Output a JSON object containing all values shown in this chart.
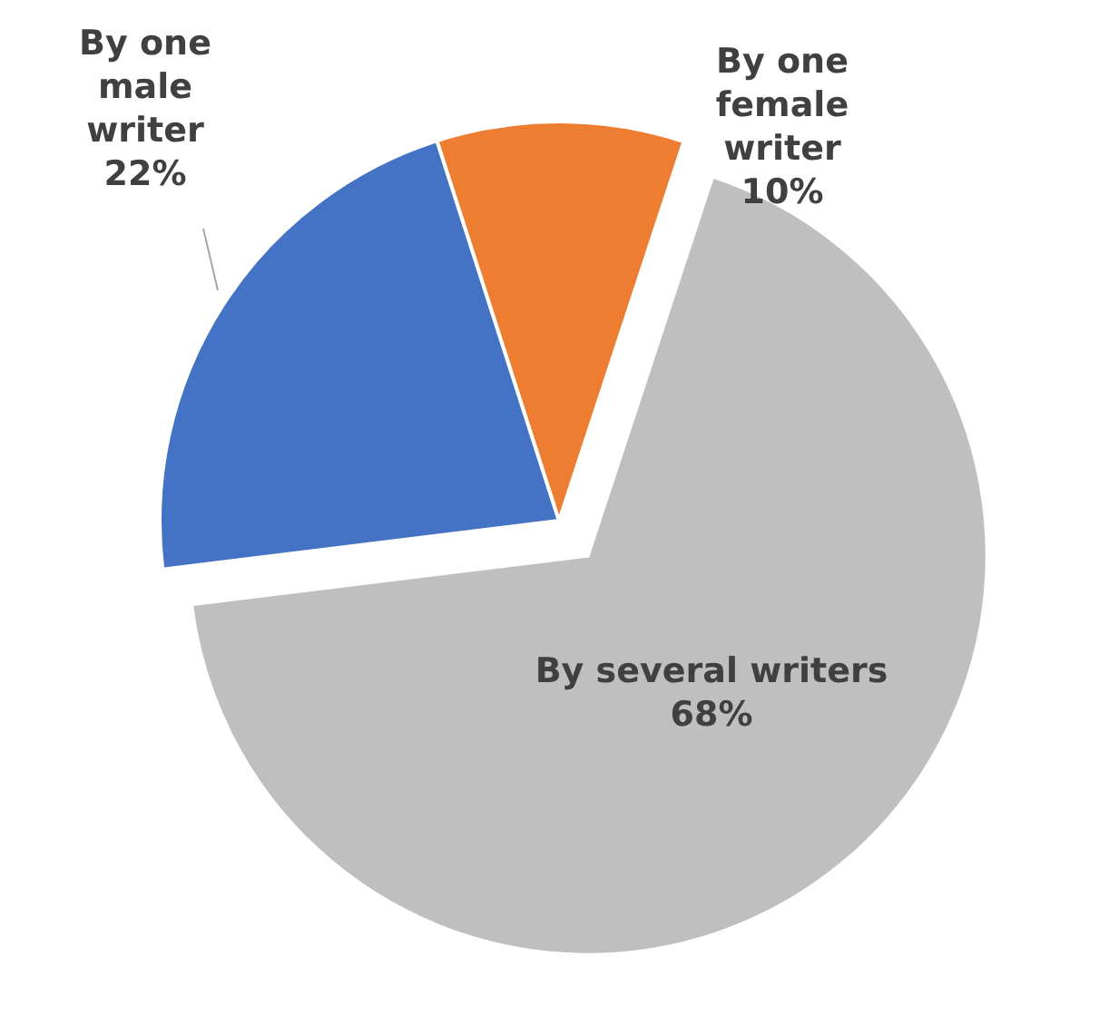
{
  "chart_data": {
    "type": "pie",
    "categories": [
      "By one male writer",
      "By one female writer",
      "By several writers"
    ],
    "values": [
      22,
      10,
      68
    ],
    "colors": [
      "#4472c4",
      "#ed7d31",
      "#bfbfbf"
    ],
    "value_labels": [
      "22%",
      "10%",
      "68%"
    ]
  }
}
